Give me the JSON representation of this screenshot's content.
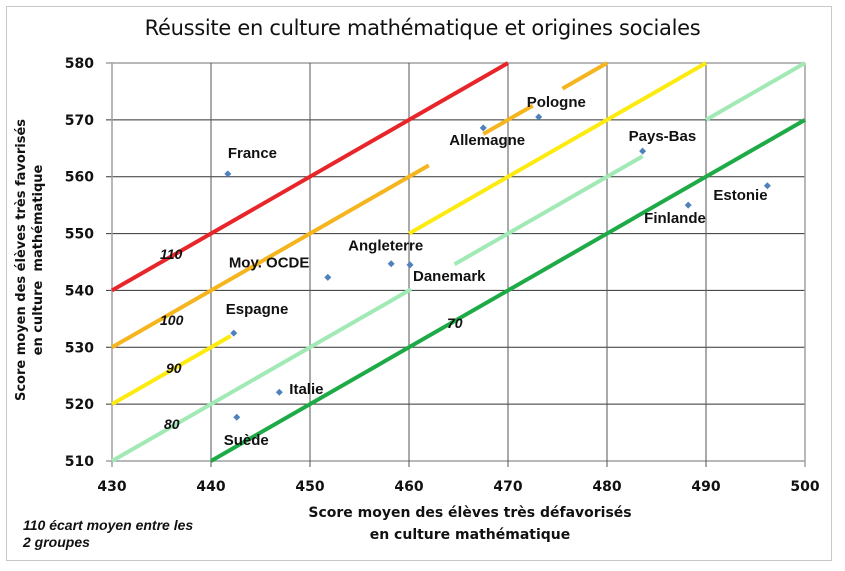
{
  "chart_data": {
    "type": "scatter",
    "title": "Réussite en culture mathématique et origines sociales",
    "xlabel": "Score moyen des élèves très défavorisés en culture mathématique",
    "xlabel_lines": [
      "Score moyen des élèves très défavorisés",
      "en culture mathématique"
    ],
    "ylabel": "Score moyen des élèves très favorisés en culture mathématique",
    "ylabel_lines": [
      "Score moyen des élèves très favorisés",
      "en culture  mathématique"
    ],
    "xlim": [
      430,
      500
    ],
    "ylim": [
      510,
      580
    ],
    "xticks": [
      430,
      440,
      450,
      460,
      470,
      480,
      490,
      500
    ],
    "yticks": [
      510,
      520,
      530,
      540,
      550,
      560,
      570,
      580
    ],
    "grid": true,
    "legend": null,
    "annotation": "110 écart moyen entre les 2 groupes",
    "annotation_lines": [
      "110 écart moyen entre les",
      "2 groupes"
    ],
    "marker_color": "#4f81bd",
    "points": [
      {
        "label": "France",
        "x": 441.7,
        "y": 560.5
      },
      {
        "label": "Allemagne",
        "x": 467.5,
        "y": 568.6
      },
      {
        "label": "Pologne",
        "x": 473.1,
        "y": 570.5
      },
      {
        "label": "Pays-Bas",
        "x": 483.6,
        "y": 564.5
      },
      {
        "label": "Finlande",
        "x": 488.2,
        "y": 555.0
      },
      {
        "label": "Estonie",
        "x": 496.2,
        "y": 558.4
      },
      {
        "label": "Moy. OCDE",
        "x": 451.8,
        "y": 542.3
      },
      {
        "label": "Angleterre",
        "x": 458.2,
        "y": 544.7
      },
      {
        "label": "Danemark",
        "x": 460.1,
        "y": 544.5
      },
      {
        "label": "Espagne",
        "x": 442.3,
        "y": 532.5
      },
      {
        "label": "Italie",
        "x": 446.9,
        "y": 522.1
      },
      {
        "label": "Suède",
        "x": 442.6,
        "y": 517.7
      }
    ],
    "reference_lines": [
      {
        "name": "110",
        "gap": 110,
        "color": "#e8262a",
        "x_range": [
          430,
          470
        ]
      },
      {
        "name": "100",
        "gap": 100,
        "color": "#f5b51e",
        "x_range": [
          430,
          480
        ]
      },
      {
        "name": "90",
        "gap": 90,
        "color": "#fdea0f",
        "x_range": [
          430,
          490
        ]
      },
      {
        "name": "80",
        "gap": 80,
        "color": "#a1e9b5",
        "x_range": [
          430,
          500
        ]
      },
      {
        "name": "70",
        "gap": 70,
        "color": "#1faa48",
        "x_range": [
          440,
          500
        ]
      }
    ]
  }
}
